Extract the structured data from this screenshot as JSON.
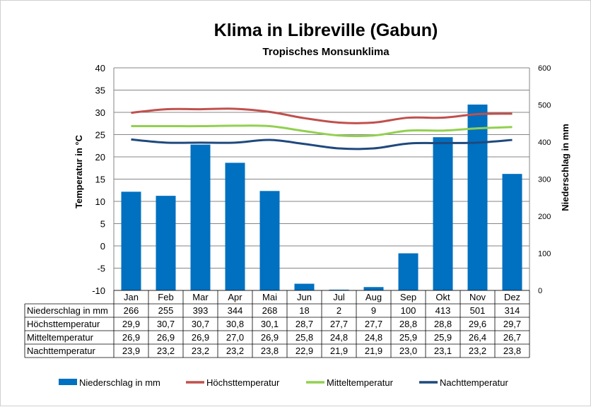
{
  "chart_data": {
    "type": "bar+line",
    "title": "Klima in Libreville (Gabun)",
    "subtitle": "Tropisches Monsunklima",
    "ylabel_left": "Temperatur in °C",
    "ylabel_right": "Niederschlag in mm",
    "ylim_left": [
      -10,
      40
    ],
    "yticks_left": [
      -10,
      -5,
      0,
      5,
      10,
      15,
      20,
      25,
      30,
      35,
      40
    ],
    "ylim_right": [
      0,
      600
    ],
    "yticks_right": [
      0,
      100,
      200,
      300,
      400,
      500,
      600
    ],
    "grid": true,
    "legend_position": "bottom",
    "categories": [
      "Jan",
      "Feb",
      "Mar",
      "Apr",
      "Mai",
      "Jun",
      "Jul",
      "Aug",
      "Sep",
      "Okt",
      "Nov",
      "Dez"
    ],
    "series": [
      {
        "name": "Niederschlag in mm",
        "type": "bar",
        "axis": "right",
        "color": "#0070C0",
        "values": [
          266,
          255,
          393,
          344,
          268,
          18,
          2,
          9,
          100,
          413,
          501,
          314
        ],
        "labels": [
          "266",
          "255",
          "393",
          "344",
          "268",
          "18",
          "2",
          "9",
          "100",
          "413",
          "501",
          "314"
        ]
      },
      {
        "name": "Höchsttemperatur",
        "type": "line",
        "axis": "left",
        "color": "#C0504D",
        "values": [
          29.9,
          30.7,
          30.7,
          30.8,
          30.1,
          28.7,
          27.7,
          27.7,
          28.8,
          28.8,
          29.6,
          29.7
        ],
        "labels": [
          "29,9",
          "30,7",
          "30,7",
          "30,8",
          "30,1",
          "28,7",
          "27,7",
          "27,7",
          "28,8",
          "28,8",
          "29,6",
          "29,7"
        ]
      },
      {
        "name": "Mitteltemperatur",
        "type": "line",
        "axis": "left",
        "color": "#92D050",
        "values": [
          26.9,
          26.9,
          26.9,
          27.0,
          26.9,
          25.8,
          24.8,
          24.8,
          25.9,
          25.9,
          26.4,
          26.7
        ],
        "labels": [
          "26,9",
          "26,9",
          "26,9",
          "27,0",
          "26,9",
          "25,8",
          "24,8",
          "24,8",
          "25,9",
          "25,9",
          "26,4",
          "26,7"
        ]
      },
      {
        "name": "Nachttemperatur",
        "type": "line",
        "axis": "left",
        "color": "#1F497D",
        "values": [
          23.9,
          23.2,
          23.2,
          23.2,
          23.8,
          22.9,
          21.9,
          21.9,
          23.0,
          23.1,
          23.2,
          23.8
        ],
        "labels": [
          "23,9",
          "23,2",
          "23,2",
          "23,2",
          "23,8",
          "22,9",
          "21,9",
          "21,9",
          "23,0",
          "23,1",
          "23,2",
          "23,8"
        ]
      }
    ]
  }
}
